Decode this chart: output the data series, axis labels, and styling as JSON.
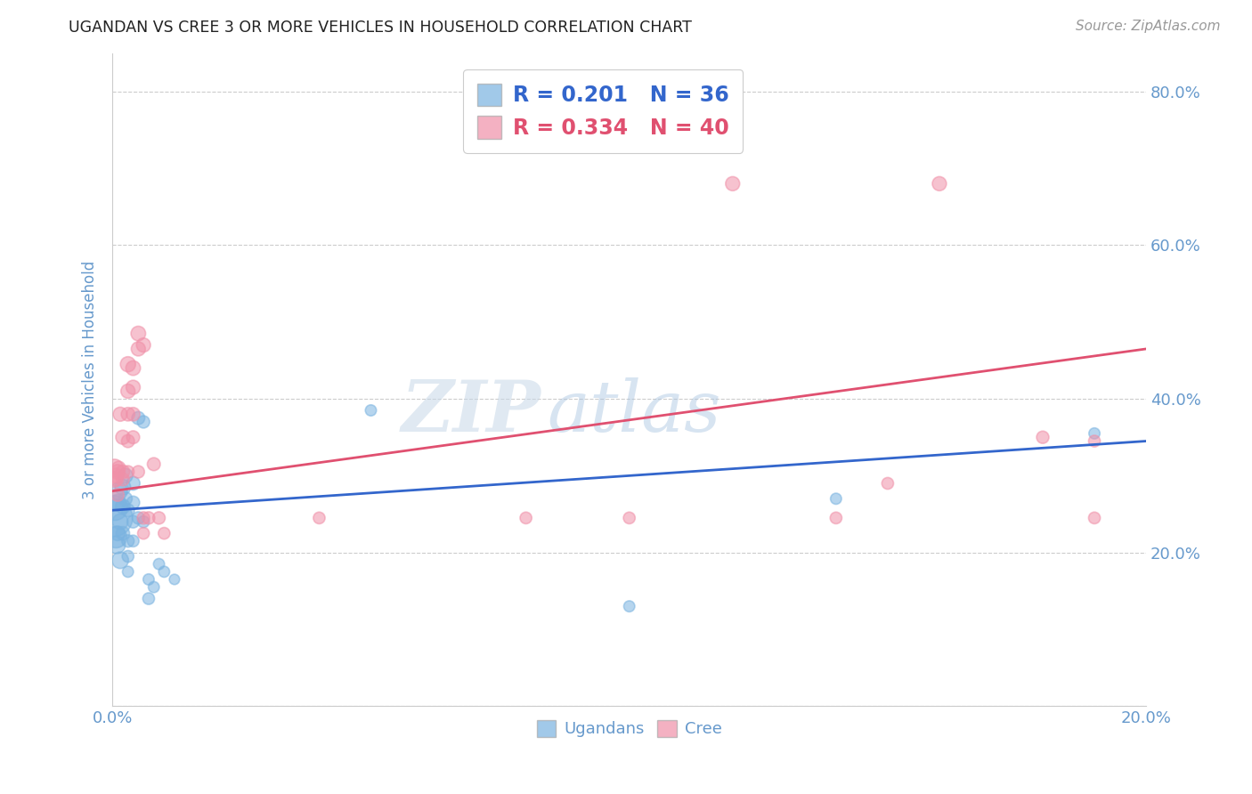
{
  "title": "UGANDAN VS CREE 3 OR MORE VEHICLES IN HOUSEHOLD CORRELATION CHART",
  "source": "Source: ZipAtlas.com",
  "ylabel_label": "3 or more Vehicles in Household",
  "watermark_zip": "ZIP",
  "watermark_atlas": "atlas",
  "xlim": [
    0.0,
    0.2
  ],
  "ylim": [
    0.0,
    0.85
  ],
  "xticks": [
    0.0,
    0.04,
    0.08,
    0.12,
    0.16,
    0.2
  ],
  "yticks": [
    0.0,
    0.2,
    0.4,
    0.6,
    0.8
  ],
  "ugandan_color": "#7ab3e0",
  "cree_color": "#f090a8",
  "ugandan_line_color": "#3366cc",
  "cree_line_color": "#e05070",
  "background_color": "#ffffff",
  "grid_color": "#cccccc",
  "axis_label_color": "#6699cc",
  "tick_label_color": "#6699cc",
  "ugandan_R": 0.201,
  "ugandan_N": 36,
  "cree_R": 0.334,
  "cree_N": 40,
  "ugandan_points": [
    [
      0.0003,
      0.245
    ],
    [
      0.0005,
      0.258
    ],
    [
      0.0007,
      0.22
    ],
    [
      0.0008,
      0.21
    ],
    [
      0.001,
      0.265
    ],
    [
      0.001,
      0.225
    ],
    [
      0.0012,
      0.28
    ],
    [
      0.0015,
      0.24
    ],
    [
      0.0015,
      0.19
    ],
    [
      0.002,
      0.285
    ],
    [
      0.002,
      0.26
    ],
    [
      0.002,
      0.225
    ],
    [
      0.0025,
      0.3
    ],
    [
      0.0025,
      0.27
    ],
    [
      0.003,
      0.255
    ],
    [
      0.003,
      0.215
    ],
    [
      0.003,
      0.195
    ],
    [
      0.003,
      0.175
    ],
    [
      0.004,
      0.29
    ],
    [
      0.004,
      0.265
    ],
    [
      0.004,
      0.24
    ],
    [
      0.004,
      0.215
    ],
    [
      0.005,
      0.375
    ],
    [
      0.005,
      0.245
    ],
    [
      0.006,
      0.37
    ],
    [
      0.006,
      0.24
    ],
    [
      0.007,
      0.14
    ],
    [
      0.007,
      0.165
    ],
    [
      0.008,
      0.155
    ],
    [
      0.009,
      0.185
    ],
    [
      0.01,
      0.175
    ],
    [
      0.012,
      0.165
    ],
    [
      0.05,
      0.385
    ],
    [
      0.1,
      0.13
    ],
    [
      0.14,
      0.27
    ],
    [
      0.19,
      0.355
    ]
  ],
  "cree_points": [
    [
      0.0003,
      0.295
    ],
    [
      0.0004,
      0.31
    ],
    [
      0.0006,
      0.3
    ],
    [
      0.0008,
      0.295
    ],
    [
      0.001,
      0.305
    ],
    [
      0.001,
      0.275
    ],
    [
      0.0012,
      0.31
    ],
    [
      0.0015,
      0.38
    ],
    [
      0.002,
      0.35
    ],
    [
      0.002,
      0.305
    ],
    [
      0.002,
      0.295
    ],
    [
      0.003,
      0.445
    ],
    [
      0.003,
      0.41
    ],
    [
      0.003,
      0.38
    ],
    [
      0.003,
      0.345
    ],
    [
      0.003,
      0.305
    ],
    [
      0.004,
      0.44
    ],
    [
      0.004,
      0.415
    ],
    [
      0.004,
      0.38
    ],
    [
      0.004,
      0.35
    ],
    [
      0.005,
      0.485
    ],
    [
      0.005,
      0.465
    ],
    [
      0.005,
      0.305
    ],
    [
      0.006,
      0.47
    ],
    [
      0.006,
      0.245
    ],
    [
      0.006,
      0.225
    ],
    [
      0.007,
      0.245
    ],
    [
      0.008,
      0.315
    ],
    [
      0.009,
      0.245
    ],
    [
      0.01,
      0.225
    ],
    [
      0.04,
      0.245
    ],
    [
      0.08,
      0.245
    ],
    [
      0.1,
      0.245
    ],
    [
      0.12,
      0.68
    ],
    [
      0.14,
      0.245
    ],
    [
      0.15,
      0.29
    ],
    [
      0.16,
      0.68
    ],
    [
      0.18,
      0.35
    ],
    [
      0.19,
      0.345
    ],
    [
      0.19,
      0.245
    ]
  ],
  "ugandan_bubble_sizes": [
    900,
    400,
    300,
    200,
    180,
    140,
    200,
    160,
    180,
    160,
    140,
    120,
    140,
    120,
    110,
    100,
    90,
    80,
    120,
    110,
    100,
    90,
    110,
    100,
    100,
    90,
    90,
    80,
    80,
    80,
    80,
    70,
    80,
    80,
    80,
    80
  ],
  "cree_bubble_sizes": [
    160,
    200,
    140,
    120,
    140,
    110,
    120,
    130,
    130,
    120,
    110,
    150,
    130,
    120,
    110,
    100,
    140,
    130,
    120,
    110,
    140,
    130,
    100,
    130,
    100,
    90,
    100,
    110,
    100,
    90,
    90,
    90,
    90,
    130,
    90,
    90,
    130,
    100,
    90,
    90
  ],
  "ug_trend_x": [
    0.0,
    0.2
  ],
  "ug_trend_y": [
    0.255,
    0.345
  ],
  "cr_trend_x": [
    0.0,
    0.2
  ],
  "cr_trend_y": [
    0.28,
    0.465
  ]
}
